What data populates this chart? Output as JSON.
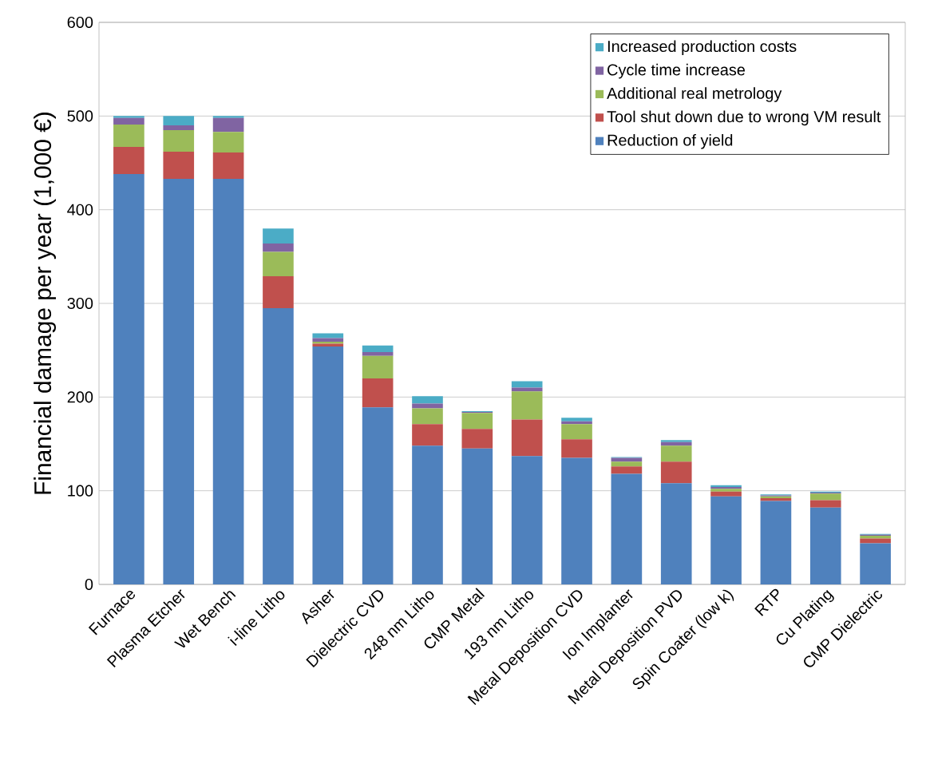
{
  "chart_data": {
    "type": "bar",
    "stacked": true,
    "ylabel": "Financial damage per year (1,000 €)",
    "categories": [
      "Furnace",
      "Plasma Etcher",
      "Wet Bench",
      "i-line Litho",
      "Asher",
      "Dielectric CVD",
      "248 nm Litho",
      "CMP Metal",
      "193 nm Litho",
      "Metal Deposition CVD",
      "Ion Implanter",
      "Metal Deposition PVD",
      "Spin Coater (low k)",
      "RTP",
      "Cu Plating",
      "CMP Dielectric"
    ],
    "series": [
      {
        "name": "Reduction of yield",
        "color": "#4f81bd",
        "values": [
          438,
          433,
          433,
          295,
          254,
          189,
          148,
          145,
          137,
          135,
          118,
          108,
          94,
          89,
          82,
          44
        ]
      },
      {
        "name": "Tool shut down due to wrong VM result",
        "color": "#c0504d",
        "values": [
          29,
          29,
          28,
          34,
          3,
          31,
          23,
          21,
          39,
          20,
          8,
          23,
          5,
          3,
          8,
          5
        ]
      },
      {
        "name": "Additional real metrology",
        "color": "#9bbb59",
        "values": [
          24,
          23,
          22,
          26,
          2,
          24,
          17,
          17,
          30,
          16,
          5,
          17,
          3,
          2,
          7,
          3
        ]
      },
      {
        "name": "Cycle time increase",
        "color": "#8064a2",
        "values": [
          7,
          5,
          15,
          9,
          4,
          4,
          5,
          1,
          4,
          3,
          4,
          4,
          2,
          1,
          1,
          1
        ]
      },
      {
        "name": "Increased production costs",
        "color": "#4bacc6",
        "values": [
          2,
          10,
          2,
          16,
          5,
          7,
          8,
          1,
          7,
          4,
          1,
          2,
          2,
          1,
          1,
          1
        ]
      }
    ],
    "ylim": [
      0,
      600
    ],
    "yticks": [
      0,
      100,
      200,
      300,
      400,
      500,
      600
    ],
    "grid": "y",
    "legend": "top right"
  }
}
